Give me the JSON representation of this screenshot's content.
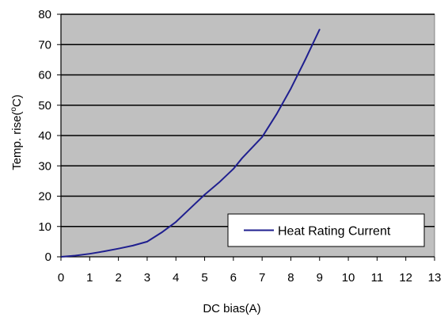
{
  "chart_data": {
    "type": "line",
    "xlabel": "DC bias(A)",
    "ylabel_prefix": "Temp. rise(",
    "ylabel_sup": "o",
    "ylabel_suffix": "C)",
    "xlim": [
      0,
      13
    ],
    "ylim": [
      0,
      80
    ],
    "x_ticks": [
      "0",
      "1",
      "2",
      "3",
      "4",
      "5",
      "6",
      "7",
      "8",
      "9",
      "10",
      "11",
      "12",
      "13"
    ],
    "y_ticks": [
      "0",
      "10",
      "20",
      "30",
      "40",
      "50",
      "60",
      "70",
      "80"
    ],
    "grid": {
      "horizontal": true,
      "vertical": false
    },
    "legend_position": "bottom-right",
    "plot_background": "#c0c0c0",
    "series": [
      {
        "name": "Heat Rating Current",
        "color": "#1f1f8f",
        "x": [
          0,
          0.5,
          1,
          1.5,
          2,
          2.5,
          3,
          3.5,
          4,
          4.5,
          5,
          5.5,
          6,
          6.3,
          6.6,
          7,
          7.5,
          8,
          8.5,
          9
        ],
        "y": [
          0,
          0.4,
          1,
          1.8,
          2.7,
          3.7,
          5,
          8,
          11.5,
          16,
          20.5,
          24.5,
          29,
          32.5,
          35.5,
          39.5,
          47,
          55.5,
          65,
          75
        ]
      }
    ]
  }
}
